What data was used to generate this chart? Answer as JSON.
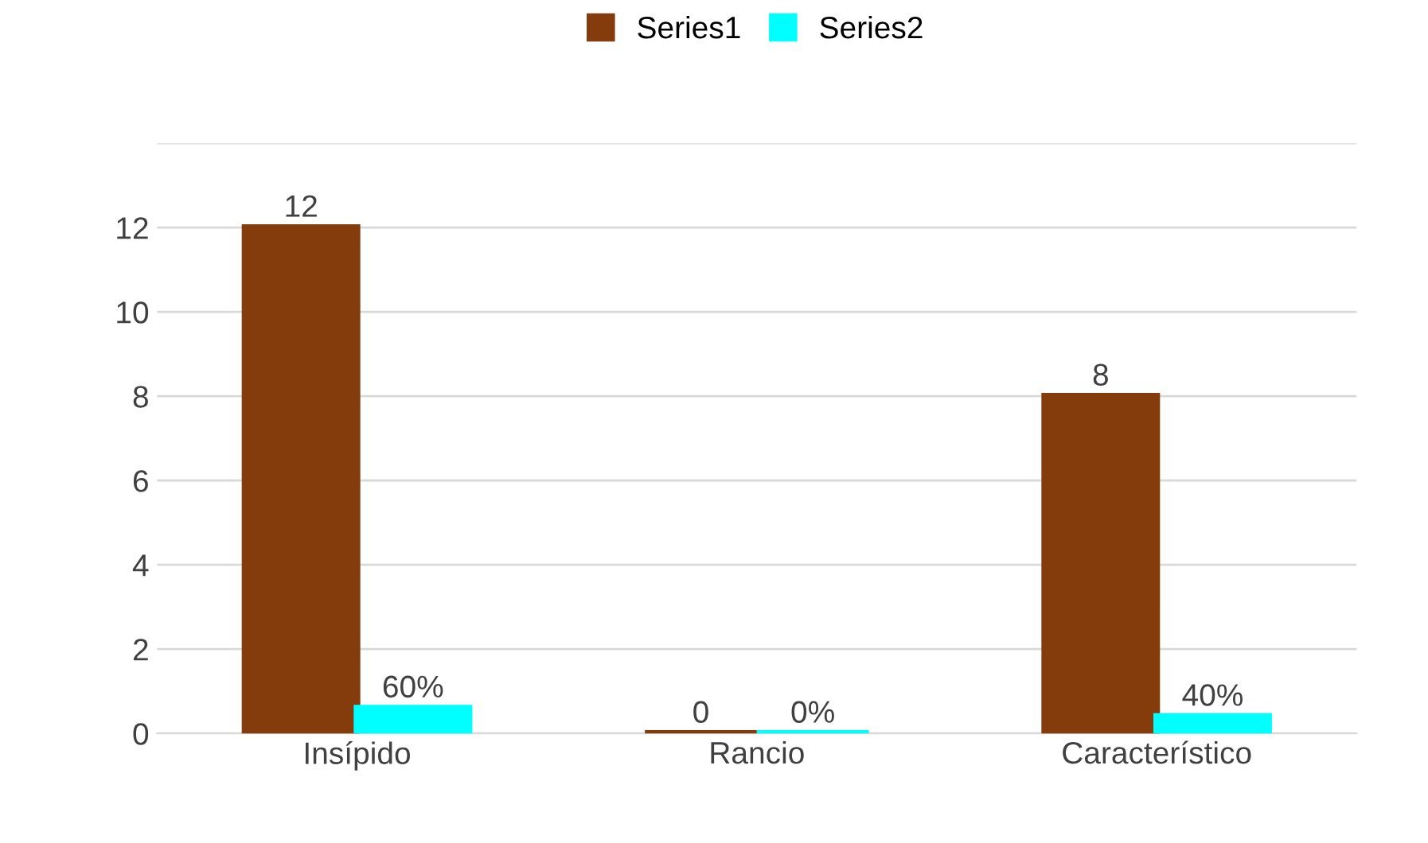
{
  "chart_data": {
    "type": "bar",
    "categories": [
      "Insípido",
      "Rancio",
      "Característico"
    ],
    "series": [
      {
        "name": "Series1",
        "color": "#843c0c",
        "values": [
          12,
          0,
          8
        ],
        "value_labels": [
          "12",
          "0",
          "8"
        ]
      },
      {
        "name": "Series2",
        "color": "#00ffff",
        "values": [
          0.6,
          0,
          0.4
        ],
        "value_labels": [
          "60%",
          "0%",
          "40%"
        ]
      }
    ],
    "ylim": [
      0,
      14
    ],
    "yticks": [
      0,
      2,
      4,
      6,
      8,
      10,
      12,
      {
        "value": 14,
        "label": null
      }
    ],
    "grid": "y",
    "legend": "top"
  }
}
